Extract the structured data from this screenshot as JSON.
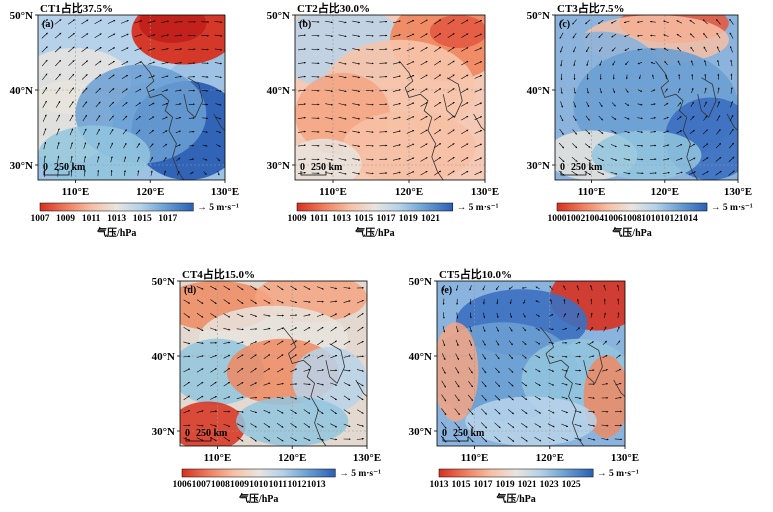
{
  "colors": {
    "low": "#d7301f",
    "mid": "#f4a582",
    "neutral": "#e8e4de",
    "high1": "#92c5de",
    "high2": "#2166ac",
    "land": "#bfbfbf",
    "arrow": "#000000"
  },
  "chart_data": [
    {
      "type": "heatmap",
      "title": "CT1占比37.5%",
      "panel_label": "(a)",
      "x_ticks": [
        "110°E",
        "120°E",
        "130°E"
      ],
      "y_ticks": [
        "50°N",
        "40°N",
        "30°N"
      ],
      "scale_label": "250 km",
      "colorbar_label": "气压/hPa",
      "colorbar_ticks": [
        "1007",
        "1009",
        "1011",
        "1013",
        "1015",
        "1017"
      ],
      "wind_key": "→ 5 m·s⁻¹",
      "x_range": [
        105,
        130
      ],
      "y_range": [
        28,
        50
      ],
      "colorbar_range": [
        1007,
        1017
      ]
    },
    {
      "type": "heatmap",
      "title": "CT2占比30.0%",
      "panel_label": "(b)",
      "x_ticks": [
        "110°E",
        "120°E",
        "130°E"
      ],
      "y_ticks": [
        "50°N",
        "40°N",
        "30°N"
      ],
      "scale_label": "250 km",
      "colorbar_label": "气压/hPa",
      "colorbar_ticks": [
        "1009",
        "1011",
        "1013",
        "1015",
        "1017",
        "1019",
        "1021"
      ],
      "wind_key": "→ 5 m·s⁻¹",
      "x_range": [
        105,
        130
      ],
      "y_range": [
        28,
        50
      ],
      "colorbar_range": [
        1009,
        1021
      ]
    },
    {
      "type": "heatmap",
      "title": "CT3占比7.5%",
      "panel_label": "(c)",
      "x_ticks": [
        "110°E",
        "120°E",
        "130°E"
      ],
      "y_ticks": [
        "50°N",
        "40°N",
        "30°N"
      ],
      "scale_label": "250 km",
      "colorbar_label": "气压/hPa",
      "colorbar_ticks": [
        "1000",
        "1002",
        "1004",
        "1006",
        "1008",
        "1010",
        "1012",
        "1014"
      ],
      "wind_key": "→ 5 m·s⁻¹",
      "x_range": [
        105,
        130
      ],
      "y_range": [
        28,
        50
      ],
      "colorbar_range": [
        1000,
        1014
      ]
    },
    {
      "type": "heatmap",
      "title": "CT4占比15.0%",
      "panel_label": "(d)",
      "x_ticks": [
        "110°E",
        "120°E",
        "130°E"
      ],
      "y_ticks": [
        "50°N",
        "40°N",
        "30°N"
      ],
      "scale_label": "250 km",
      "colorbar_label": "气压/hPa",
      "colorbar_ticks": [
        "1006",
        "1007",
        "1008",
        "1009",
        "1010",
        "1011",
        "1012",
        "1013"
      ],
      "wind_key": "→ 5 m·s⁻¹",
      "x_range": [
        105,
        130
      ],
      "y_range": [
        28,
        50
      ],
      "colorbar_range": [
        1006,
        1013
      ]
    },
    {
      "type": "heatmap",
      "title": "CT5占比10.0%",
      "panel_label": "(e)",
      "x_ticks": [
        "110°E",
        "120°E",
        "130°E"
      ],
      "y_ticks": [
        "50°N",
        "40°N",
        "30°N"
      ],
      "scale_label": "250 km",
      "colorbar_label": "气压/hPa",
      "colorbar_ticks": [
        "1013",
        "1015",
        "1017",
        "1019",
        "1021",
        "1023",
        "1025"
      ],
      "wind_key": "→ 5 m·s⁻¹",
      "x_range": [
        105,
        130
      ],
      "y_range": [
        28,
        50
      ],
      "colorbar_range": [
        1013,
        1025
      ]
    }
  ]
}
